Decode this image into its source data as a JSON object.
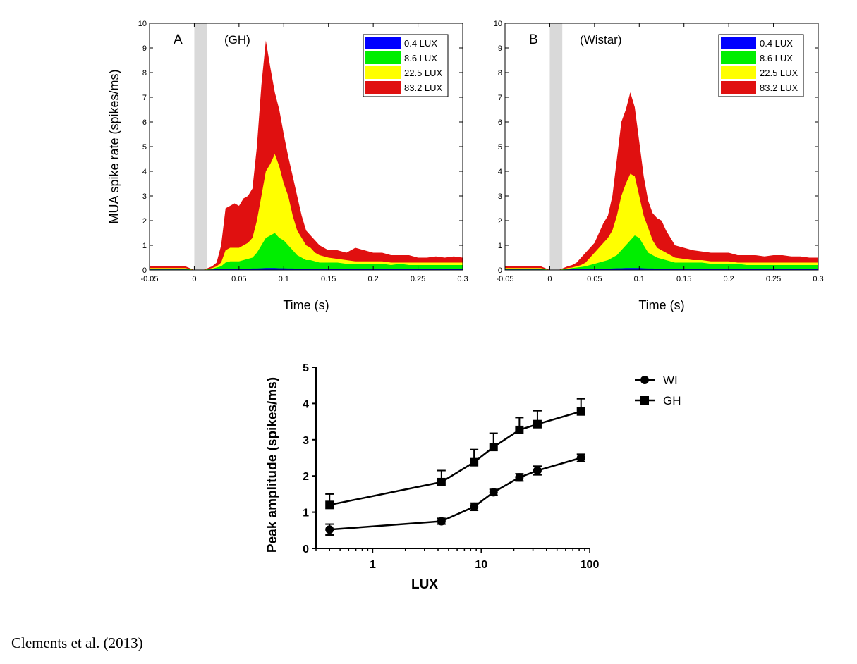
{
  "chart_data": [
    {
      "type": "area",
      "panel_letter": "A",
      "strain_label": "(GH)",
      "xlabel": "Time (s)",
      "ylabel": "MUA spike rate (spikes/ms)",
      "xlim": [
        -0.05,
        0.3
      ],
      "ylim": [
        0,
        10
      ],
      "x_ticks": [
        "-0.05",
        "0",
        "0.05",
        "0.1",
        "0.15",
        "0.2",
        "0.25",
        "0.3"
      ],
      "y_ticks": [
        "0",
        "1",
        "2",
        "3",
        "4",
        "5",
        "6",
        "7",
        "8",
        "9",
        "10"
      ],
      "stimulus_band": [
        0,
        0.014
      ],
      "legend_position": "top-right",
      "x": [
        -0.05,
        -0.04,
        -0.03,
        -0.02,
        -0.01,
        0,
        0.01,
        0.02,
        0.025,
        0.03,
        0.035,
        0.04,
        0.045,
        0.05,
        0.055,
        0.06,
        0.065,
        0.07,
        0.075,
        0.08,
        0.085,
        0.09,
        0.095,
        0.1,
        0.105,
        0.11,
        0.115,
        0.12,
        0.125,
        0.13,
        0.135,
        0.14,
        0.15,
        0.16,
        0.17,
        0.18,
        0.19,
        0.2,
        0.21,
        0.22,
        0.23,
        0.24,
        0.25,
        0.26,
        0.27,
        0.28,
        0.29,
        0.3
      ],
      "series": [
        {
          "name": "0.4 LUX",
          "color": "#0000ff",
          "values": [
            0.02,
            0.02,
            0.02,
            0.02,
            0.02,
            0,
            0,
            0.02,
            0.03,
            0.03,
            0.04,
            0.05,
            0.05,
            0.05,
            0.05,
            0.05,
            0.06,
            0.06,
            0.07,
            0.08,
            0.08,
            0.08,
            0.07,
            0.07,
            0.06,
            0.06,
            0.05,
            0.05,
            0.05,
            0.05,
            0.04,
            0.04,
            0.04,
            0.04,
            0.04,
            0.04,
            0.04,
            0.04,
            0.04,
            0.04,
            0.04,
            0.04,
            0.04,
            0.04,
            0.04,
            0.04,
            0.04,
            0.04
          ]
        },
        {
          "name": "8.6 LUX",
          "color": "#00ee00",
          "values": [
            0.05,
            0.05,
            0.05,
            0.05,
            0.05,
            0,
            0,
            0.05,
            0.1,
            0.15,
            0.3,
            0.35,
            0.35,
            0.35,
            0.4,
            0.45,
            0.5,
            0.7,
            1.0,
            1.3,
            1.4,
            1.5,
            1.3,
            1.2,
            1.0,
            0.8,
            0.6,
            0.5,
            0.4,
            0.4,
            0.35,
            0.3,
            0.3,
            0.3,
            0.25,
            0.25,
            0.25,
            0.25,
            0.25,
            0.2,
            0.25,
            0.2,
            0.2,
            0.2,
            0.2,
            0.2,
            0.2,
            0.2
          ]
        },
        {
          "name": "22.5 LUX",
          "color": "#ffff00",
          "values": [
            0.08,
            0.08,
            0.08,
            0.08,
            0.08,
            0,
            0,
            0.08,
            0.15,
            0.3,
            0.8,
            0.9,
            0.9,
            0.9,
            1.0,
            1.1,
            1.3,
            2.0,
            3.0,
            4.0,
            4.3,
            4.7,
            4.2,
            3.5,
            3.0,
            2.2,
            1.6,
            1.3,
            1.0,
            0.9,
            0.7,
            0.6,
            0.5,
            0.45,
            0.4,
            0.35,
            0.35,
            0.35,
            0.35,
            0.3,
            0.3,
            0.3,
            0.3,
            0.3,
            0.3,
            0.3,
            0.3,
            0.3
          ]
        },
        {
          "name": "83.2 LUX",
          "color": "#e01010",
          "values": [
            0.15,
            0.15,
            0.15,
            0.15,
            0.15,
            0,
            0,
            0.15,
            0.3,
            1.0,
            2.5,
            2.6,
            2.7,
            2.6,
            2.9,
            3.0,
            3.3,
            5.0,
            7.5,
            9.3,
            8.2,
            7.2,
            6.5,
            5.5,
            4.6,
            3.8,
            3.0,
            2.2,
            1.6,
            1.4,
            1.2,
            1.0,
            0.8,
            0.8,
            0.7,
            0.9,
            0.8,
            0.7,
            0.7,
            0.6,
            0.6,
            0.6,
            0.5,
            0.5,
            0.55,
            0.5,
            0.55,
            0.5
          ]
        }
      ]
    },
    {
      "type": "area",
      "panel_letter": "B",
      "strain_label": "(Wistar)",
      "xlabel": "Time (s)",
      "xlim": [
        -0.05,
        0.3
      ],
      "ylim": [
        0,
        10
      ],
      "x_ticks": [
        "-0.05",
        "0",
        "0.05",
        "0.1",
        "0.15",
        "0.2",
        "0.25",
        "0.3"
      ],
      "y_ticks": [
        "0",
        "1",
        "2",
        "3",
        "4",
        "5",
        "6",
        "7",
        "8",
        "9",
        "10"
      ],
      "stimulus_band": [
        0,
        0.014
      ],
      "legend_position": "top-right",
      "x": [
        -0.05,
        -0.04,
        -0.03,
        -0.02,
        -0.01,
        0,
        0.01,
        0.02,
        0.025,
        0.03,
        0.035,
        0.04,
        0.045,
        0.05,
        0.055,
        0.06,
        0.065,
        0.07,
        0.075,
        0.08,
        0.085,
        0.09,
        0.095,
        0.1,
        0.105,
        0.11,
        0.115,
        0.12,
        0.125,
        0.13,
        0.135,
        0.14,
        0.15,
        0.16,
        0.17,
        0.18,
        0.19,
        0.2,
        0.21,
        0.22,
        0.23,
        0.24,
        0.25,
        0.26,
        0.27,
        0.28,
        0.29,
        0.3
      ],
      "series": [
        {
          "name": "0.4 LUX",
          "color": "#0000ff",
          "values": [
            0.02,
            0.02,
            0.02,
            0.02,
            0.02,
            0,
            0,
            0.02,
            0.03,
            0.03,
            0.03,
            0.04,
            0.04,
            0.05,
            0.05,
            0.05,
            0.05,
            0.06,
            0.07,
            0.07,
            0.08,
            0.08,
            0.08,
            0.08,
            0.07,
            0.06,
            0.06,
            0.05,
            0.05,
            0.05,
            0.04,
            0.04,
            0.04,
            0.04,
            0.04,
            0.04,
            0.04,
            0.04,
            0.04,
            0.04,
            0.04,
            0.04,
            0.04,
            0.04,
            0.04,
            0.04,
            0.04,
            0.04
          ]
        },
        {
          "name": "8.6 LUX",
          "color": "#00ee00",
          "values": [
            0.05,
            0.05,
            0.05,
            0.05,
            0.05,
            0,
            0,
            0.05,
            0.08,
            0.1,
            0.12,
            0.15,
            0.2,
            0.25,
            0.3,
            0.35,
            0.4,
            0.5,
            0.6,
            0.8,
            1.0,
            1.2,
            1.4,
            1.3,
            1.0,
            0.7,
            0.6,
            0.5,
            0.45,
            0.4,
            0.35,
            0.3,
            0.3,
            0.3,
            0.3,
            0.25,
            0.25,
            0.25,
            0.25,
            0.2,
            0.2,
            0.2,
            0.2,
            0.2,
            0.2,
            0.2,
            0.2,
            0.2
          ]
        },
        {
          "name": "22.5 LUX",
          "color": "#ffff00",
          "values": [
            0.08,
            0.08,
            0.08,
            0.08,
            0.08,
            0,
            0,
            0.08,
            0.1,
            0.15,
            0.2,
            0.3,
            0.5,
            0.7,
            0.9,
            1.1,
            1.3,
            1.6,
            2.2,
            3.0,
            3.5,
            3.9,
            3.8,
            3.0,
            2.2,
            1.7,
            1.2,
            0.9,
            0.8,
            0.7,
            0.6,
            0.5,
            0.45,
            0.4,
            0.4,
            0.35,
            0.35,
            0.35,
            0.3,
            0.3,
            0.3,
            0.3,
            0.3,
            0.3,
            0.3,
            0.3,
            0.3,
            0.3
          ]
        },
        {
          "name": "83.2 LUX",
          "color": "#e01010",
          "values": [
            0.15,
            0.15,
            0.15,
            0.15,
            0.15,
            0,
            0,
            0.15,
            0.2,
            0.3,
            0.5,
            0.7,
            0.9,
            1.1,
            1.5,
            1.9,
            2.2,
            3.0,
            4.5,
            6.0,
            6.5,
            7.2,
            6.6,
            5.2,
            3.8,
            2.8,
            2.3,
            2.1,
            2.0,
            1.6,
            1.3,
            1.0,
            0.9,
            0.8,
            0.75,
            0.7,
            0.7,
            0.7,
            0.6,
            0.6,
            0.6,
            0.55,
            0.6,
            0.6,
            0.55,
            0.55,
            0.5,
            0.5
          ]
        }
      ]
    },
    {
      "type": "line",
      "xscale": "log",
      "xlabel": "LUX",
      "ylabel": "Peak amplitude (spikes/ms)",
      "xlim": [
        0.3,
        100
      ],
      "ylim": [
        0,
        5
      ],
      "x_ticks": [
        1,
        10,
        100
      ],
      "x_tick_labels": [
        "1",
        "10",
        "100"
      ],
      "y_ticks": [
        "0",
        "1",
        "2",
        "3",
        "4",
        "5"
      ],
      "legend_position": "right",
      "series": [
        {
          "name": "WI",
          "marker": "circle",
          "x": [
            0.4,
            4.3,
            8.6,
            13,
            22.5,
            33,
            83.2
          ],
          "y": [
            0.52,
            0.75,
            1.15,
            1.55,
            1.96,
            2.15,
            2.5
          ],
          "err": [
            0.15,
            0.08,
            0.1,
            0.08,
            0.1,
            0.12,
            0.1
          ]
        },
        {
          "name": "GH",
          "marker": "square",
          "x": [
            0.4,
            4.3,
            8.6,
            13,
            22.5,
            33,
            83.2
          ],
          "y": [
            1.2,
            1.83,
            2.38,
            2.8,
            3.27,
            3.43,
            3.78
          ],
          "err": [
            0.3,
            0.32,
            0.35,
            0.38,
            0.34,
            0.37,
            0.35
          ]
        }
      ]
    }
  ],
  "citation": "Clements et al. (2013)"
}
